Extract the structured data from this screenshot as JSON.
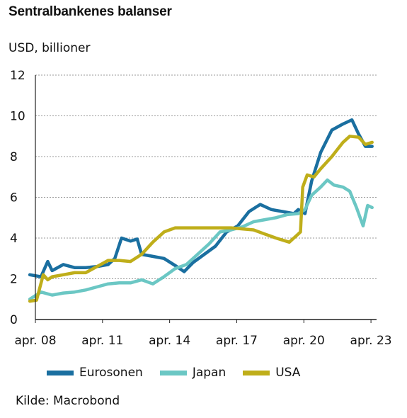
{
  "title": "Sentralbankenes balanser",
  "unit_label": "USD, billioner",
  "source": "Kilde: Macrobond",
  "colors": {
    "eurosonen": "#1a6fa0",
    "japan": "#6bc7c4",
    "usa": "#bfae1a",
    "grid": "#9a9a9a",
    "axis": "#222222"
  },
  "chart_data": {
    "type": "line",
    "title": "Sentralbankenes balanser",
    "ylabel": "USD, billioner",
    "xlabel": "",
    "ylim": [
      0,
      12
    ],
    "xlim": [
      2008.25,
      2023.5
    ],
    "yticks": [
      0,
      2,
      4,
      6,
      8,
      10,
      12
    ],
    "xticks": [
      {
        "x": 2008.25,
        "label": "apr. 08"
      },
      {
        "x": 2011.25,
        "label": "apr. 11"
      },
      {
        "x": 2014.25,
        "label": "apr. 14"
      },
      {
        "x": 2017.25,
        "label": "apr. 17"
      },
      {
        "x": 2020.25,
        "label": "apr. 20"
      },
      {
        "x": 2023.25,
        "label": "apr. 23"
      }
    ],
    "grid": "horizontal dashed",
    "legend_position": "bottom",
    "series": [
      {
        "name": "Eurosonen",
        "color": "#1a6fa0",
        "x": [
          2008.0,
          2008.5,
          2008.8,
          2009.0,
          2009.5,
          2010.0,
          2010.5,
          2011.0,
          2011.5,
          2011.8,
          2012.1,
          2012.5,
          2012.8,
          2013.0,
          2013.5,
          2014.0,
          2014.5,
          2014.9,
          2015.3,
          2015.8,
          2016.3,
          2016.8,
          2017.3,
          2017.8,
          2018.3,
          2018.8,
          2019.3,
          2019.8,
          2020.0,
          2020.3,
          2020.6,
          2021.0,
          2021.5,
          2022.0,
          2022.4,
          2022.7,
          2023.0,
          2023.3
        ],
        "y": [
          2.2,
          2.1,
          2.85,
          2.4,
          2.7,
          2.55,
          2.55,
          2.6,
          2.7,
          3.0,
          4.0,
          3.85,
          3.95,
          3.2,
          3.1,
          3.0,
          2.65,
          2.35,
          2.8,
          3.2,
          3.6,
          4.3,
          4.6,
          5.3,
          5.65,
          5.4,
          5.3,
          5.2,
          5.4,
          5.2,
          6.8,
          8.2,
          9.3,
          9.6,
          9.8,
          9.1,
          8.5,
          8.5
        ]
      },
      {
        "name": "Japan",
        "color": "#6bc7c4",
        "x": [
          2008.0,
          2008.5,
          2009.0,
          2009.5,
          2010.0,
          2010.5,
          2011.0,
          2011.5,
          2012.0,
          2012.5,
          2013.0,
          2013.5,
          2014.0,
          2014.5,
          2015.0,
          2015.5,
          2016.0,
          2016.5,
          2017.0,
          2017.5,
          2018.0,
          2018.5,
          2019.0,
          2019.5,
          2020.0,
          2020.3,
          2020.6,
          2021.0,
          2021.3,
          2021.6,
          2022.0,
          2022.3,
          2022.6,
          2022.9,
          2023.1,
          2023.3
        ],
        "y": [
          1.0,
          1.35,
          1.2,
          1.3,
          1.35,
          1.45,
          1.6,
          1.75,
          1.8,
          1.8,
          1.95,
          1.75,
          2.1,
          2.5,
          2.7,
          3.2,
          3.7,
          4.3,
          4.4,
          4.55,
          4.8,
          4.9,
          5.0,
          5.15,
          5.2,
          5.4,
          6.1,
          6.5,
          6.85,
          6.6,
          6.5,
          6.3,
          5.5,
          4.6,
          5.6,
          5.5
        ]
      },
      {
        "name": "USA",
        "color": "#bfae1a",
        "x": [
          2008.0,
          2008.3,
          2008.6,
          2008.8,
          2009.0,
          2009.5,
          2010.0,
          2010.5,
          2011.0,
          2011.5,
          2012.0,
          2012.5,
          2013.0,
          2013.5,
          2014.0,
          2014.5,
          2015.0,
          2016.0,
          2017.0,
          2017.5,
          2018.0,
          2018.5,
          2019.0,
          2019.6,
          2019.8,
          2020.0,
          2020.1,
          2020.2,
          2020.4,
          2020.7,
          2021.0,
          2021.5,
          2022.0,
          2022.3,
          2022.7,
          2023.0,
          2023.3
        ],
        "y": [
          0.9,
          0.95,
          2.2,
          1.95,
          2.1,
          2.2,
          2.3,
          2.3,
          2.6,
          2.9,
          2.9,
          2.85,
          3.2,
          3.8,
          4.3,
          4.5,
          4.5,
          4.5,
          4.5,
          4.45,
          4.4,
          4.2,
          4.0,
          3.8,
          4.0,
          4.2,
          4.3,
          6.5,
          7.1,
          7.0,
          7.4,
          8.0,
          8.7,
          9.0,
          8.95,
          8.6,
          8.7
        ]
      }
    ]
  }
}
